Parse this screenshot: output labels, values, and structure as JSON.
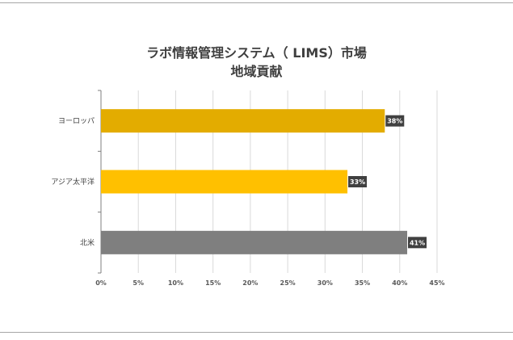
{
  "chart_data": {
    "type": "bar",
    "orientation": "horizontal",
    "title": "ラボ情報管理システム（ LIMS）市場",
    "subtitle": "地域貢献",
    "categories": [
      "ヨーロッパ",
      "アジア太平洋",
      "北米"
    ],
    "values": [
      38,
      33,
      41
    ],
    "data_labels": [
      "38%",
      "33%",
      "41%"
    ],
    "colors": [
      "#e3ac00",
      "#ffc000",
      "#7f7f7f"
    ],
    "xlim": [
      0,
      45
    ],
    "x_ticks": [
      "0%",
      "5%",
      "10%",
      "15%",
      "20%",
      "25%",
      "30%",
      "35%",
      "40%",
      "45%"
    ],
    "grid": true,
    "legend": "none"
  }
}
